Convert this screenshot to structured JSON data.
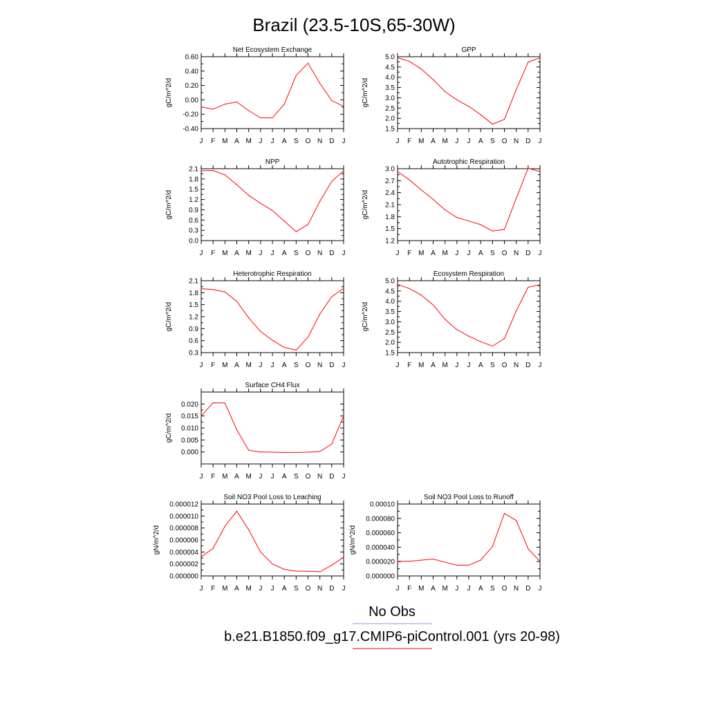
{
  "figure": {
    "title": "Brazil (23.5-10S,65-30W)",
    "series_color": "#ff0000",
    "obs_color": "#8c8cff",
    "legend": {
      "obs_label": "No Obs",
      "model_label": "b.e21.B1850.f09_g17.CMIP6-piControl.001 (yrs 20-98)"
    }
  },
  "chart_data": [
    {
      "type": "line",
      "title": "Net Ecosystem Exchange",
      "ylabel": "gC/m^2/d",
      "x": [
        "J",
        "F",
        "M",
        "A",
        "M",
        "J",
        "J",
        "A",
        "S",
        "O",
        "N",
        "D",
        "J"
      ],
      "ylim": [
        -0.4,
        0.6
      ],
      "yticks": [
        "0.60",
        "0.40",
        "0.20",
        "0.00",
        "-0.20",
        "-0.40"
      ],
      "series": [
        {
          "values": [
            -0.1,
            -0.13,
            -0.06,
            -0.03,
            -0.15,
            -0.25,
            -0.25,
            -0.06,
            0.34,
            0.51,
            0.23,
            -0.01,
            -0.09
          ]
        }
      ],
      "grid": false
    },
    {
      "type": "line",
      "title": "GPP",
      "ylabel": "gC/m^2/d",
      "x": [
        "J",
        "F",
        "M",
        "A",
        "M",
        "J",
        "J",
        "A",
        "S",
        "O",
        "N",
        "D",
        "J"
      ],
      "ylim": [
        1.5,
        5.0
      ],
      "yticks": [
        "5.0",
        "4.5",
        "4.0",
        "3.5",
        "3.0",
        "2.5",
        "2.0",
        "1.5"
      ],
      "series": [
        {
          "values": [
            4.95,
            4.77,
            4.4,
            3.88,
            3.3,
            2.9,
            2.58,
            2.18,
            1.72,
            1.95,
            3.4,
            4.73,
            4.95
          ]
        }
      ],
      "grid": false
    },
    {
      "type": "line",
      "title": "NPP",
      "ylabel": "gC/m^2/d",
      "x": [
        "J",
        "F",
        "M",
        "A",
        "M",
        "J",
        "J",
        "A",
        "S",
        "O",
        "N",
        "D",
        "J"
      ],
      "ylim": [
        0.0,
        2.1
      ],
      "yticks": [
        "2.1",
        "1.8",
        "1.5",
        "1.2",
        "0.9",
        "0.6",
        "0.3",
        "0.0"
      ],
      "series": [
        {
          "values": [
            2.04,
            2.05,
            1.92,
            1.63,
            1.32,
            1.09,
            0.88,
            0.57,
            0.26,
            0.47,
            1.15,
            1.73,
            2.04
          ]
        }
      ],
      "grid": false
    },
    {
      "type": "line",
      "title": "Autotrophic Respiration",
      "ylabel": "gC/m^2/d",
      "x": [
        "J",
        "F",
        "M",
        "A",
        "M",
        "J",
        "J",
        "A",
        "S",
        "O",
        "N",
        "D",
        "J"
      ],
      "ylim": [
        1.2,
        3.0
      ],
      "yticks": [
        "3.0",
        "2.7",
        "2.4",
        "2.1",
        "1.8",
        "1.5",
        "1.2"
      ],
      "series": [
        {
          "values": [
            2.93,
            2.72,
            2.47,
            2.23,
            1.97,
            1.78,
            1.69,
            1.6,
            1.44,
            1.48,
            2.26,
            3.01,
            2.93
          ]
        }
      ],
      "grid": false
    },
    {
      "type": "line",
      "title": "Heterotrophic Respiration",
      "ylabel": "gC/m^2/d",
      "x": [
        "J",
        "F",
        "M",
        "A",
        "M",
        "J",
        "J",
        "A",
        "S",
        "O",
        "N",
        "D",
        "J"
      ],
      "ylim": [
        0.3,
        2.1
      ],
      "yticks": [
        "2.1",
        "1.8",
        "1.5",
        "1.2",
        "0.9",
        "0.6",
        "0.3"
      ],
      "series": [
        {
          "values": [
            1.9,
            1.88,
            1.82,
            1.58,
            1.17,
            0.83,
            0.61,
            0.43,
            0.36,
            0.69,
            1.27,
            1.7,
            1.91
          ]
        }
      ],
      "grid": false
    },
    {
      "type": "line",
      "title": "Ecosystem Respiration",
      "ylabel": "gC/m^2/d",
      "x": [
        "J",
        "F",
        "M",
        "A",
        "M",
        "J",
        "J",
        "A",
        "S",
        "O",
        "N",
        "D",
        "J"
      ],
      "ylim": [
        1.5,
        5.0
      ],
      "yticks": [
        "5.0",
        "4.5",
        "4.0",
        "3.5",
        "3.0",
        "2.5",
        "2.0",
        "1.5"
      ],
      "series": [
        {
          "values": [
            4.82,
            4.62,
            4.3,
            3.82,
            3.12,
            2.62,
            2.3,
            2.03,
            1.82,
            2.18,
            3.53,
            4.68,
            4.81
          ]
        }
      ],
      "grid": false
    },
    {
      "type": "line",
      "title": "Surface CH4 Flux",
      "ylabel": "gC/m^2/d",
      "x": [
        "J",
        "F",
        "M",
        "A",
        "M",
        "J",
        "J",
        "A",
        "S",
        "O",
        "N",
        "D",
        "J"
      ],
      "ylim": [
        -0.005,
        0.025
      ],
      "yticks": [
        "0.020",
        "0.015",
        "0.010",
        "0.005",
        "0.000"
      ],
      "ytick_values": [
        0.02,
        0.015,
        0.01,
        0.005,
        0.0
      ],
      "series": [
        {
          "values": [
            0.015,
            0.0205,
            0.0204,
            0.0092,
            0.0007,
            0.0,
            -0.0001,
            -0.0002,
            -0.0002,
            -0.0001,
            0.0002,
            0.0033,
            0.015
          ]
        }
      ],
      "grid": false
    },
    {
      "type": "line",
      "title": "Soil NO3 Pool Loss to Leaching",
      "ylabel": "gN/m^2/d",
      "x": [
        "J",
        "F",
        "M",
        "A",
        "M",
        "J",
        "J",
        "A",
        "S",
        "O",
        "N",
        "D",
        "J"
      ],
      "ylim": [
        0.0,
        1.2e-05
      ],
      "yticks": [
        "0.000012",
        "0.000010",
        "0.000008",
        "0.000006",
        "0.000004",
        "0.000002",
        "0.000000"
      ],
      "series": [
        {
          "values": [
            3.2e-06,
            4.6e-06,
            8.3e-06,
            1.08e-05,
            7.7e-06,
            4e-06,
            2e-06,
            1.1e-06,
            8e-07,
            8e-07,
            7e-07,
            1.8e-06,
            3.1e-06
          ]
        }
      ],
      "grid": false
    },
    {
      "type": "line",
      "title": "Soil NO3 Pool Loss to Runoff",
      "ylabel": "gN/m^2/d",
      "x": [
        "J",
        "F",
        "M",
        "A",
        "M",
        "J",
        "J",
        "A",
        "S",
        "O",
        "N",
        "D",
        "J"
      ],
      "ylim": [
        0.0,
        0.0001
      ],
      "yticks": [
        "0.00010",
        "0.000080",
        "0.000060",
        "0.000040",
        "0.000020",
        "0.000000"
      ],
      "ytick_values": [
        0.0001,
        8e-05,
        6e-05,
        4e-05,
        2e-05,
        0.0
      ],
      "series": [
        {
          "values": [
            2.05e-05,
            2.05e-05,
            2.2e-05,
            2.35e-05,
            1.9e-05,
            1.5e-05,
            1.5e-05,
            2.2e-05,
            4.1e-05,
            8.7e-05,
            7.7e-05,
            3.8e-05,
            2e-05
          ]
        }
      ],
      "grid": false
    }
  ]
}
